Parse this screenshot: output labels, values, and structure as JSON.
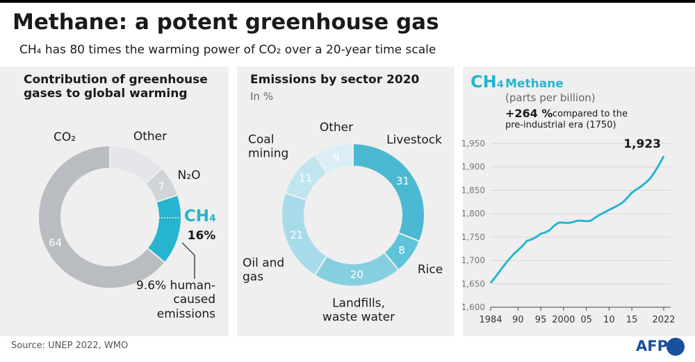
{
  "title": "Methane: a potent greenhouse gas",
  "subtitle": "CH₄ has 80 times the warming power of CO₂ over a 20-year time scale",
  "source": "Source: UNEP 2022, WMO",
  "logo": "AFP",
  "chart_data": [
    {
      "type": "donut",
      "title": "Contribution of greenhouse gases to global warming",
      "categories": [
        "CO₂",
        "Other",
        "N₂O",
        "CH₄"
      ],
      "values": [
        64,
        13,
        7,
        16
      ],
      "value_labels": [
        "64",
        null,
        "7",
        "16%"
      ],
      "colors": [
        "#b9bcc1",
        "#e4e6e9",
        "#d0d4d9",
        "#27b4cf"
      ],
      "annotation": "9.6% human-caused emissions"
    },
    {
      "type": "donut",
      "title": "Emissions by sector 2020",
      "subtitle": "In %",
      "categories": [
        "Livestock",
        "Rice",
        "Landfills, waste water",
        "Oil and gas",
        "Coal mining",
        "Other"
      ],
      "values": [
        31,
        8,
        20,
        21,
        11,
        9
      ],
      "colors": [
        "#4bb9d2",
        "#5fc3da",
        "#86cfe1",
        "#a8dbea",
        "#bfe5ef",
        "#d9eff5"
      ]
    },
    {
      "type": "line",
      "label": "CH₄",
      "title": "Methane",
      "subtitle": "(parts per billion)",
      "annotation": {
        "value": "+264 %",
        "text": "compared to the pre-industrial era (1750)"
      },
      "x": [
        1984,
        1985,
        1986,
        1987,
        1988,
        1989,
        1990,
        1991,
        1992,
        1993,
        1994,
        1995,
        1996,
        1997,
        1998,
        1999,
        2000,
        2001,
        2002,
        2003,
        2004,
        2005,
        2006,
        2007,
        2008,
        2009,
        2010,
        2011,
        2012,
        2013,
        2014,
        2015,
        2016,
        2017,
        2018,
        2019,
        2020,
        2021,
        2022
      ],
      "series": [
        {
          "name": "Methane",
          "color": "#27b4cf",
          "values": [
            1652,
            1664,
            1677,
            1690,
            1702,
            1713,
            1722,
            1731,
            1742,
            1745,
            1750,
            1757,
            1760,
            1765,
            1775,
            1781,
            1781,
            1780,
            1782,
            1785,
            1785,
            1784,
            1785,
            1792,
            1798,
            1803,
            1808,
            1813,
            1818,
            1824,
            1834,
            1845,
            1852,
            1858,
            1866,
            1875,
            1889,
            1905,
            1923
          ],
          "value_labels": [
            null,
            null,
            null,
            null,
            null,
            null,
            null,
            null,
            null,
            null,
            null,
            null,
            null,
            null,
            null,
            null,
            null,
            null,
            null,
            null,
            null,
            null,
            null,
            null,
            null,
            null,
            null,
            null,
            null,
            null,
            null,
            null,
            null,
            null,
            null,
            null,
            null,
            null,
            "1,923"
          ]
        }
      ],
      "xlim": [
        1984,
        2022
      ],
      "xticks": [
        1984,
        {
          "value": 1990,
          "label": "90"
        },
        {
          "value": 1995,
          "label": "95"
        },
        2000,
        {
          "value": 2005,
          "label": "05"
        },
        {
          "value": 2010,
          "label": "10"
        },
        {
          "value": 2015,
          "label": "15"
        },
        2022
      ],
      "ylim": [
        1600,
        1950
      ],
      "yticks": [
        {
          "value": 1600,
          "label": "1,600"
        },
        {
          "value": 1650,
          "label": "1,650"
        },
        {
          "value": 1700,
          "label": "1,700"
        },
        {
          "value": 1750,
          "label": "1,750"
        },
        {
          "value": 1800,
          "label": "1,800"
        },
        {
          "value": 1850,
          "label": "1,850"
        },
        {
          "value": 1900,
          "label": "1,900"
        },
        {
          "value": 1950,
          "label": "1,950"
        }
      ],
      "grid": true
    }
  ]
}
